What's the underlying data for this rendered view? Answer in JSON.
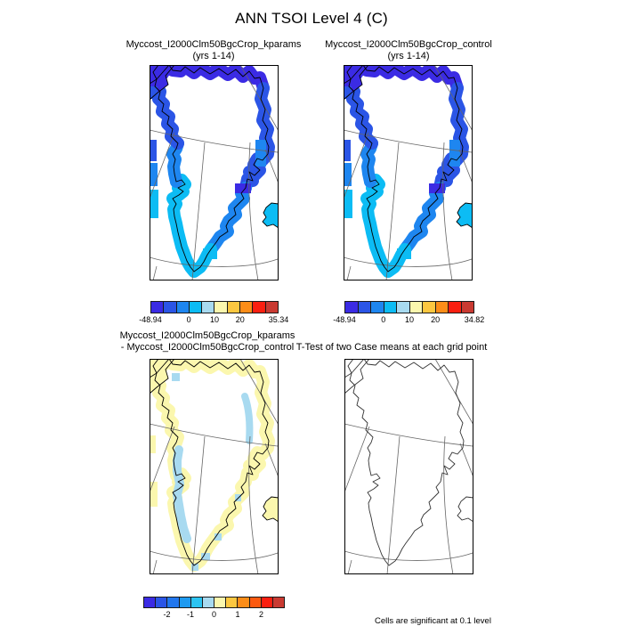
{
  "page_title": "ANN TSOI Level 4 (C)",
  "colors": {
    "scale10": [
      "#3b2be4",
      "#2b55e6",
      "#1e86f0",
      "#0cbcf4",
      "#a8daf0",
      "#fbf7ae",
      "#fcc740",
      "#fc8d18",
      "#fa1f10",
      "#c93a32"
    ],
    "scale12": [
      "#3b2be4",
      "#2b55e6",
      "#2277ee",
      "#1e9af0",
      "#2cc4f2",
      "#a8daf0",
      "#fbf7ae",
      "#fcc740",
      "#fc8d18",
      "#fc5a10",
      "#fa1f10",
      "#c93a32"
    ],
    "coastline": "#000000",
    "graticule": "#666666"
  },
  "panels": {
    "kparams": {
      "title_line1": "Myccost_I2000Clm50BgcCrop_kparams",
      "title_line2": "(yrs 1-14)",
      "colorbar_labels": [
        "-48.94",
        "0",
        "10",
        "20",
        "35.34"
      ]
    },
    "control": {
      "title_line1": "Myccost_I2000Clm50BgcCrop_control",
      "title_line2": "(yrs 1-14)",
      "colorbar_labels": [
        "-48.94",
        "0",
        "10",
        "20",
        "34.82"
      ]
    },
    "diff": {
      "title_line1": "Myccost_I2000Clm50BgcCrop_kparams",
      "title_line2": "- Myccost_I2000Clm50BgcCrop_control",
      "colorbar_labels": [
        "-2",
        "-1",
        "0",
        "1",
        "2"
      ]
    },
    "ttest": {
      "title_line1": "T-Test of two Case means at each grid point",
      "note": "Cells are significant at 0.1 level"
    }
  },
  "chart_data": {
    "type": "heatmap",
    "title": "ANN TSOI Level 4 (C)",
    "layout": "2x2 map panels of Greenland, polar stereographic style graticule",
    "panels": [
      {
        "name": "Myccost_I2000Clm50BgcCrop_kparams (yrs 1-14)",
        "region": "Greenland",
        "min": -48.94,
        "max": 35.34,
        "colorbar_ticks": [
          -48.94,
          0,
          10,
          20,
          35.34
        ],
        "n_color_boxes": 10,
        "fill_pattern": "coastal margin colored blue (dark blue/violet in north, medium blue east and northwest, cyan in south/southwest); interior ice sheet white/no data; Iceland fragment cyan"
      },
      {
        "name": "Myccost_I2000Clm50BgcCrop_control (yrs 1-14)",
        "region": "Greenland",
        "min": -48.94,
        "max": 34.82,
        "colorbar_ticks": [
          -48.94,
          0,
          10,
          20,
          34.82
        ],
        "n_color_boxes": 10,
        "fill_pattern": "nearly identical to kparams panel"
      },
      {
        "name": "Myccost_I2000Clm50BgcCrop_kparams - Myccost_I2000Clm50BgcCrop_control",
        "region": "Greenland",
        "colorbar_ticks": [
          -2,
          -1,
          0,
          1,
          2
        ],
        "n_color_boxes": 12,
        "fill_pattern": "coastal margin pale yellow (small positive diff) with light-blue patches (small negative diff) along west coast and a northeast streak; interior white"
      },
      {
        "name": "T-Test of two Case means at each grid point",
        "region": "Greenland",
        "fill_pattern": "no shaded cells (outline and graticule only)",
        "note": "Cells are significant at 0.1 level"
      }
    ]
  }
}
